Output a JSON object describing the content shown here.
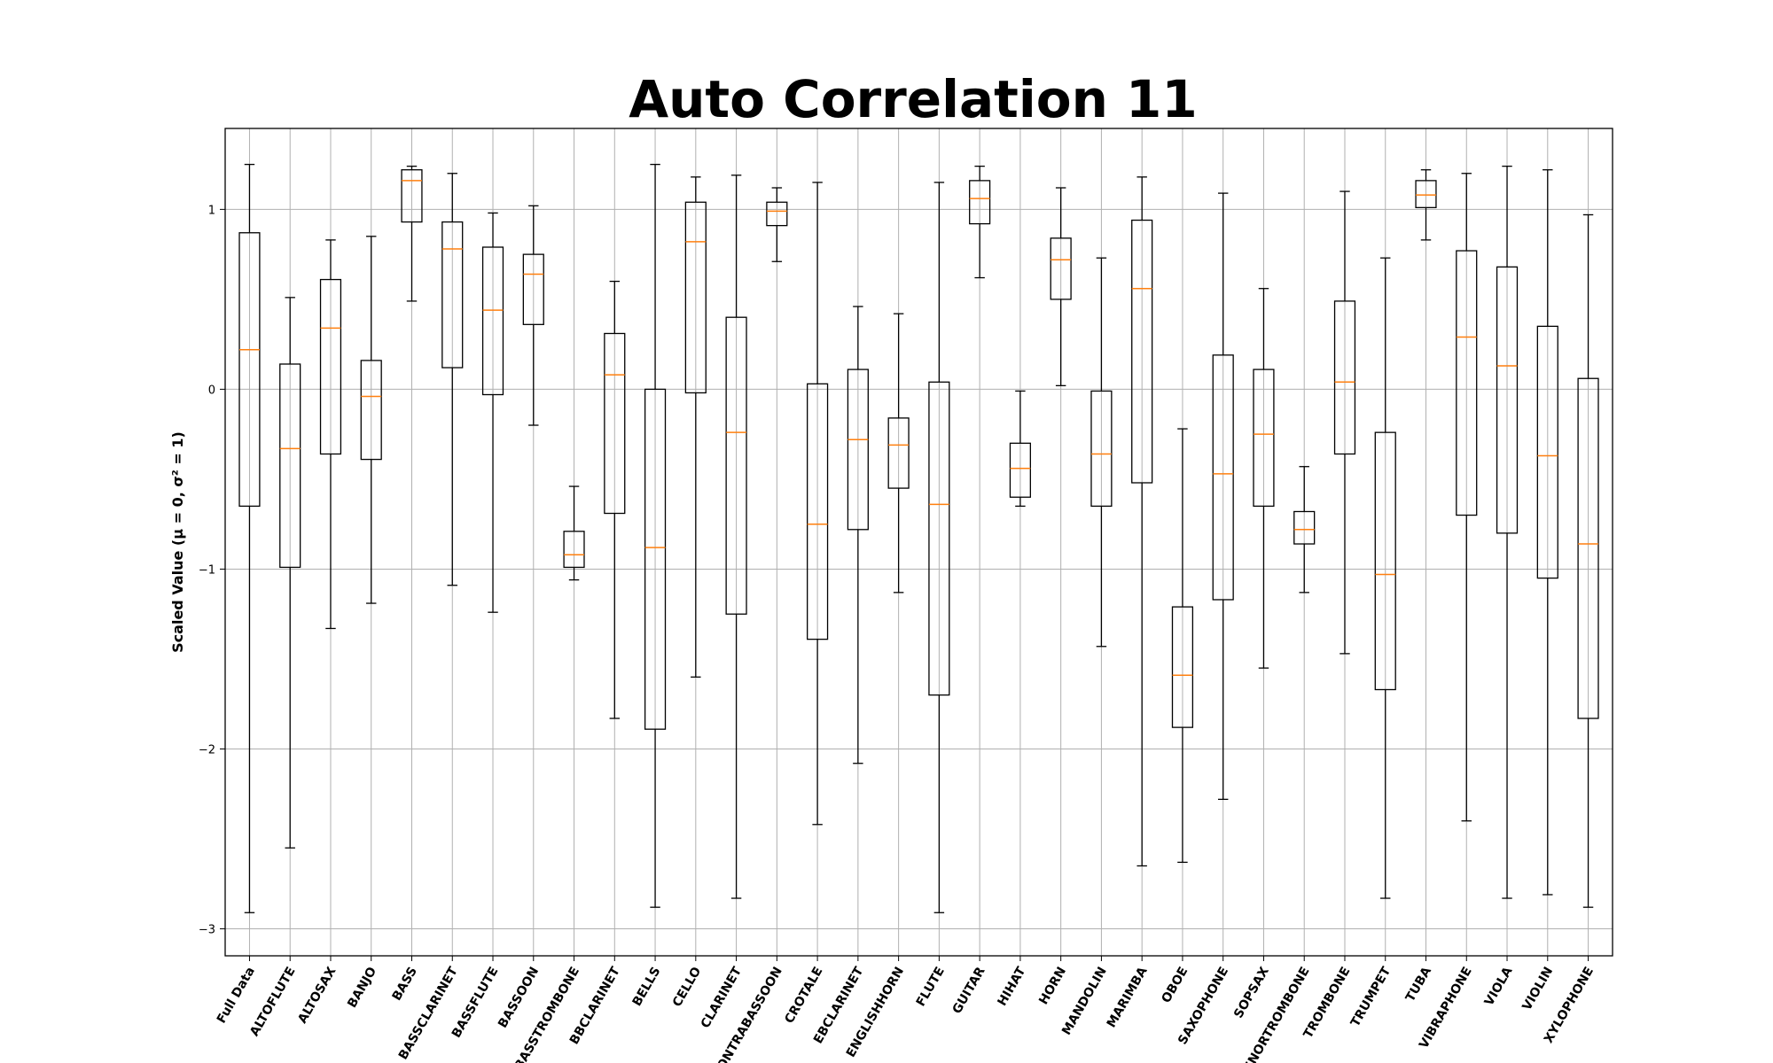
{
  "chart_data": {
    "type": "box",
    "title": "Auto Correlation 11",
    "ylabel": "Scaled Value (μ = 0, σ² = 1)",
    "xlabel": "",
    "ylim": [
      -3.15,
      1.45
    ],
    "yticks": [
      -3,
      -2,
      -1,
      0,
      1
    ],
    "grid": true,
    "colors": {
      "box": "#000000",
      "median": "#ff7f0e",
      "grid": "#b0b0b0"
    },
    "series": [
      {
        "name": "Full Data",
        "whisker_low": -2.91,
        "q1": -0.65,
        "median": 0.22,
        "q3": 0.87,
        "whisker_high": 1.25
      },
      {
        "name": "ALTOFLUTE",
        "whisker_low": -2.55,
        "q1": -0.99,
        "median": -0.33,
        "q3": 0.14,
        "whisker_high": 0.51
      },
      {
        "name": "ALTOSAX",
        "whisker_low": -1.33,
        "q1": -0.36,
        "median": 0.34,
        "q3": 0.61,
        "whisker_high": 0.83
      },
      {
        "name": "BANJO",
        "whisker_low": -1.19,
        "q1": -0.39,
        "median": -0.04,
        "q3": 0.16,
        "whisker_high": 0.85
      },
      {
        "name": "BASS",
        "whisker_low": 0.49,
        "q1": 0.93,
        "median": 1.16,
        "q3": 1.22,
        "whisker_high": 1.24
      },
      {
        "name": "BASSCLARINET",
        "whisker_low": -1.09,
        "q1": 0.12,
        "median": 0.78,
        "q3": 0.93,
        "whisker_high": 1.2
      },
      {
        "name": "BASSFLUTE",
        "whisker_low": -1.24,
        "q1": -0.03,
        "median": 0.44,
        "q3": 0.79,
        "whisker_high": 0.98
      },
      {
        "name": "BASSOON",
        "whisker_low": -0.2,
        "q1": 0.36,
        "median": 0.64,
        "q3": 0.75,
        "whisker_high": 1.02
      },
      {
        "name": "BASSTROMBONE",
        "whisker_low": -1.06,
        "q1": -0.99,
        "median": -0.92,
        "q3": -0.79,
        "whisker_high": -0.54
      },
      {
        "name": "BBCLARINET",
        "whisker_low": -1.83,
        "q1": -0.69,
        "median": 0.08,
        "q3": 0.31,
        "whisker_high": 0.6
      },
      {
        "name": "BELLS",
        "whisker_low": -2.88,
        "q1": -1.89,
        "median": -0.88,
        "q3": 0.0,
        "whisker_high": 1.25
      },
      {
        "name": "CELLO",
        "whisker_low": -1.6,
        "q1": -0.02,
        "median": 0.82,
        "q3": 1.04,
        "whisker_high": 1.18
      },
      {
        "name": "CLARINET",
        "whisker_low": -2.83,
        "q1": -1.25,
        "median": -0.24,
        "q3": 0.4,
        "whisker_high": 1.19
      },
      {
        "name": "CONTRABASSOON",
        "whisker_low": 0.71,
        "q1": 0.91,
        "median": 0.99,
        "q3": 1.04,
        "whisker_high": 1.12
      },
      {
        "name": "CROTALE",
        "whisker_low": -2.42,
        "q1": -1.39,
        "median": -0.75,
        "q3": 0.03,
        "whisker_high": 1.15
      },
      {
        "name": "EBCLARINET",
        "whisker_low": -2.08,
        "q1": -0.78,
        "median": -0.28,
        "q3": 0.11,
        "whisker_high": 0.46
      },
      {
        "name": "ENGLISHHORN",
        "whisker_low": -1.13,
        "q1": -0.55,
        "median": -0.31,
        "q3": -0.16,
        "whisker_high": 0.42
      },
      {
        "name": "FLUTE",
        "whisker_low": -2.91,
        "q1": -1.7,
        "median": -0.64,
        "q3": 0.04,
        "whisker_high": 1.15
      },
      {
        "name": "GUITAR",
        "whisker_low": 0.62,
        "q1": 0.92,
        "median": 1.06,
        "q3": 1.16,
        "whisker_high": 1.24
      },
      {
        "name": "HIHAT",
        "whisker_low": -0.65,
        "q1": -0.6,
        "median": -0.44,
        "q3": -0.3,
        "whisker_high": -0.01
      },
      {
        "name": "HORN",
        "whisker_low": 0.02,
        "q1": 0.5,
        "median": 0.72,
        "q3": 0.84,
        "whisker_high": 1.12
      },
      {
        "name": "MANDOLIN",
        "whisker_low": -1.43,
        "q1": -0.65,
        "median": -0.36,
        "q3": -0.01,
        "whisker_high": 0.73
      },
      {
        "name": "MARIMBA",
        "whisker_low": -2.65,
        "q1": -0.52,
        "median": 0.56,
        "q3": 0.94,
        "whisker_high": 1.18
      },
      {
        "name": "OBOE",
        "whisker_low": -2.63,
        "q1": -1.88,
        "median": -1.59,
        "q3": -1.21,
        "whisker_high": -0.22
      },
      {
        "name": "SAXOPHONE",
        "whisker_low": -2.28,
        "q1": -1.17,
        "median": -0.47,
        "q3": 0.19,
        "whisker_high": 1.09
      },
      {
        "name": "SOPSAX",
        "whisker_low": -1.55,
        "q1": -0.65,
        "median": -0.25,
        "q3": 0.11,
        "whisker_high": 0.56
      },
      {
        "name": "TENORTROMBONE",
        "whisker_low": -1.13,
        "q1": -0.86,
        "median": -0.78,
        "q3": -0.68,
        "whisker_high": -0.43
      },
      {
        "name": "TROMBONE",
        "whisker_low": -1.47,
        "q1": -0.36,
        "median": 0.04,
        "q3": 0.49,
        "whisker_high": 1.1
      },
      {
        "name": "TRUMPET",
        "whisker_low": -2.83,
        "q1": -1.67,
        "median": -1.03,
        "q3": -0.24,
        "whisker_high": 0.73
      },
      {
        "name": "TUBA",
        "whisker_low": 0.83,
        "q1": 1.01,
        "median": 1.08,
        "q3": 1.16,
        "whisker_high": 1.22
      },
      {
        "name": "VIBRAPHONE",
        "whisker_low": -2.4,
        "q1": -0.7,
        "median": 0.29,
        "q3": 0.77,
        "whisker_high": 1.2
      },
      {
        "name": "VIOLA",
        "whisker_low": -2.83,
        "q1": -0.8,
        "median": 0.13,
        "q3": 0.68,
        "whisker_high": 1.24
      },
      {
        "name": "VIOLIN",
        "whisker_low": -2.81,
        "q1": -1.05,
        "median": -0.37,
        "q3": 0.35,
        "whisker_high": 1.22
      },
      {
        "name": "XYLOPHONE",
        "whisker_low": -2.88,
        "q1": -1.83,
        "median": -0.86,
        "q3": 0.06,
        "whisker_high": 0.97
      }
    ]
  }
}
